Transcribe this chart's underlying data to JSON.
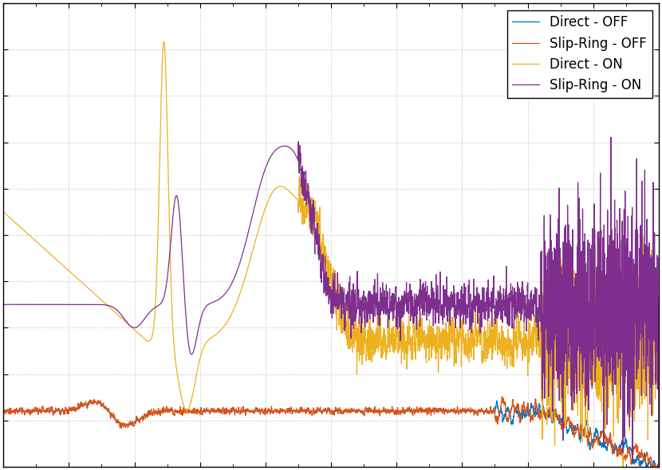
{
  "legend_entries": [
    "Direct - OFF",
    "Slip-Ring - OFF",
    "Direct - ON",
    "Slip-Ring - ON"
  ],
  "colors": [
    "#0072bd",
    "#d95319",
    "#edb120",
    "#7e2f8e"
  ],
  "linewidth": 0.9,
  "background_color": "#ffffff",
  "legend_fontsize": 12,
  "tick_labelsize": 0
}
